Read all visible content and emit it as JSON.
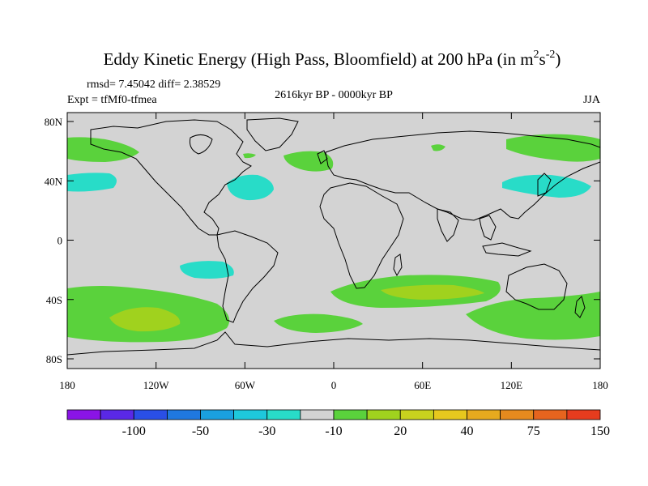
{
  "figure": {
    "title_main": "Eddy Kinetic Energy (High Pass, Bloomfield) at 200 hPa (in m",
    "title_exp1": "2",
    "title_mid": "s",
    "title_exp2": "-2",
    "title_close": ")",
    "stats": "rmsd= 7.45042 diff= 2.38529",
    "expt": "Expt = tfMf0-tfmea",
    "period": "2616kyr BP - 0000kyr BP",
    "season": "JJA"
  },
  "map": {
    "lat_labels": [
      "80N",
      "40N",
      "0",
      "40S",
      "80S"
    ],
    "lon_labels": [
      "180",
      "120W",
      "60W",
      "0",
      "60E",
      "120E",
      "180"
    ],
    "land_outline_color": "#000000",
    "background_color": "#d3d3d3"
  },
  "anomaly_regions": [
    {
      "name": "north-pacific-west-green",
      "level": "green"
    },
    {
      "name": "north-pacific-teal",
      "level": "teal"
    },
    {
      "name": "north-atlantic-teal",
      "level": "teal"
    },
    {
      "name": "north-atlantic-green",
      "level": "green"
    },
    {
      "name": "europe-green",
      "level": "green"
    },
    {
      "name": "russia-green",
      "level": "green"
    },
    {
      "name": "northeast-asia-green",
      "level": "green"
    },
    {
      "name": "east-asia-teal",
      "level": "teal"
    },
    {
      "name": "south-pacific-teal",
      "level": "teal"
    },
    {
      "name": "south-pacific-green",
      "level": "green"
    },
    {
      "name": "south-pacific-yellowgreen",
      "level": "yellowgreen"
    },
    {
      "name": "south-atlantic-green",
      "level": "green"
    },
    {
      "name": "indian-ocean-green",
      "level": "green"
    },
    {
      "name": "indian-ocean-yellowgreen",
      "level": "yellowgreen"
    },
    {
      "name": "australia-south-green",
      "level": "green"
    }
  ],
  "colorbar": {
    "colors": [
      "#8a14e6",
      "#5a28e6",
      "#2a4fe6",
      "#1f78e0",
      "#1aa0e0",
      "#1ec8dc",
      "#28dcc8",
      "#d3d3d3",
      "#5ad23c",
      "#a0d21e",
      "#c8d21e",
      "#e6c81e",
      "#e6aa1e",
      "#e68a1e",
      "#e6641e",
      "#e63c1e"
    ],
    "labels": [
      "-100",
      "-50",
      "-30",
      "-10",
      "20",
      "40",
      "75",
      "150"
    ]
  }
}
